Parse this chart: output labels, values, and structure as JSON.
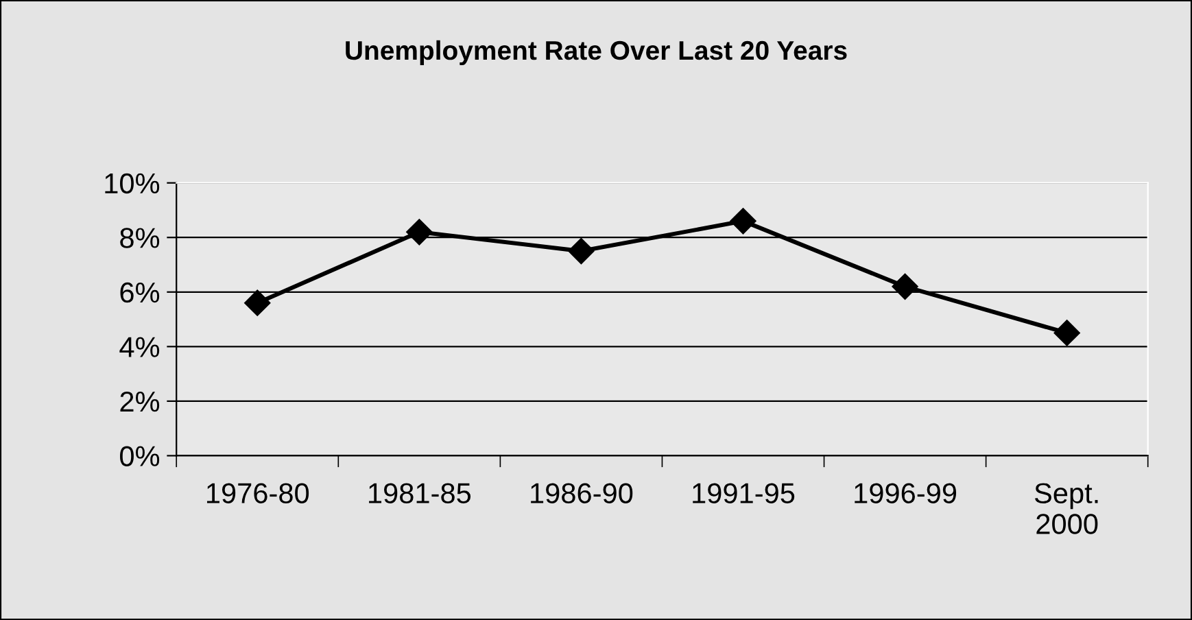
{
  "chart_data": {
    "type": "line",
    "title": "Unemployment Rate Over Last 20 Years",
    "categories": [
      "1976-80",
      "1981-85",
      "1986-90",
      "1991-95",
      "1996-99",
      "Sept.\n2000"
    ],
    "series": [
      {
        "color": "#000000",
        "values": [
          5.6,
          8.2,
          7.5,
          8.6,
          6.2,
          4.5
        ]
      }
    ],
    "ylim": [
      0,
      10
    ],
    "yticks": [
      {
        "value": 0,
        "label": "0%"
      },
      {
        "value": 2,
        "label": "2%"
      },
      {
        "value": 4,
        "label": "4%"
      },
      {
        "value": 6,
        "label": "6%"
      },
      {
        "value": 8,
        "label": "8%"
      },
      {
        "value": 10,
        "label": "10%"
      }
    ],
    "grid": "y",
    "marker": "diamond",
    "line_style": "solid",
    "legend": false
  }
}
